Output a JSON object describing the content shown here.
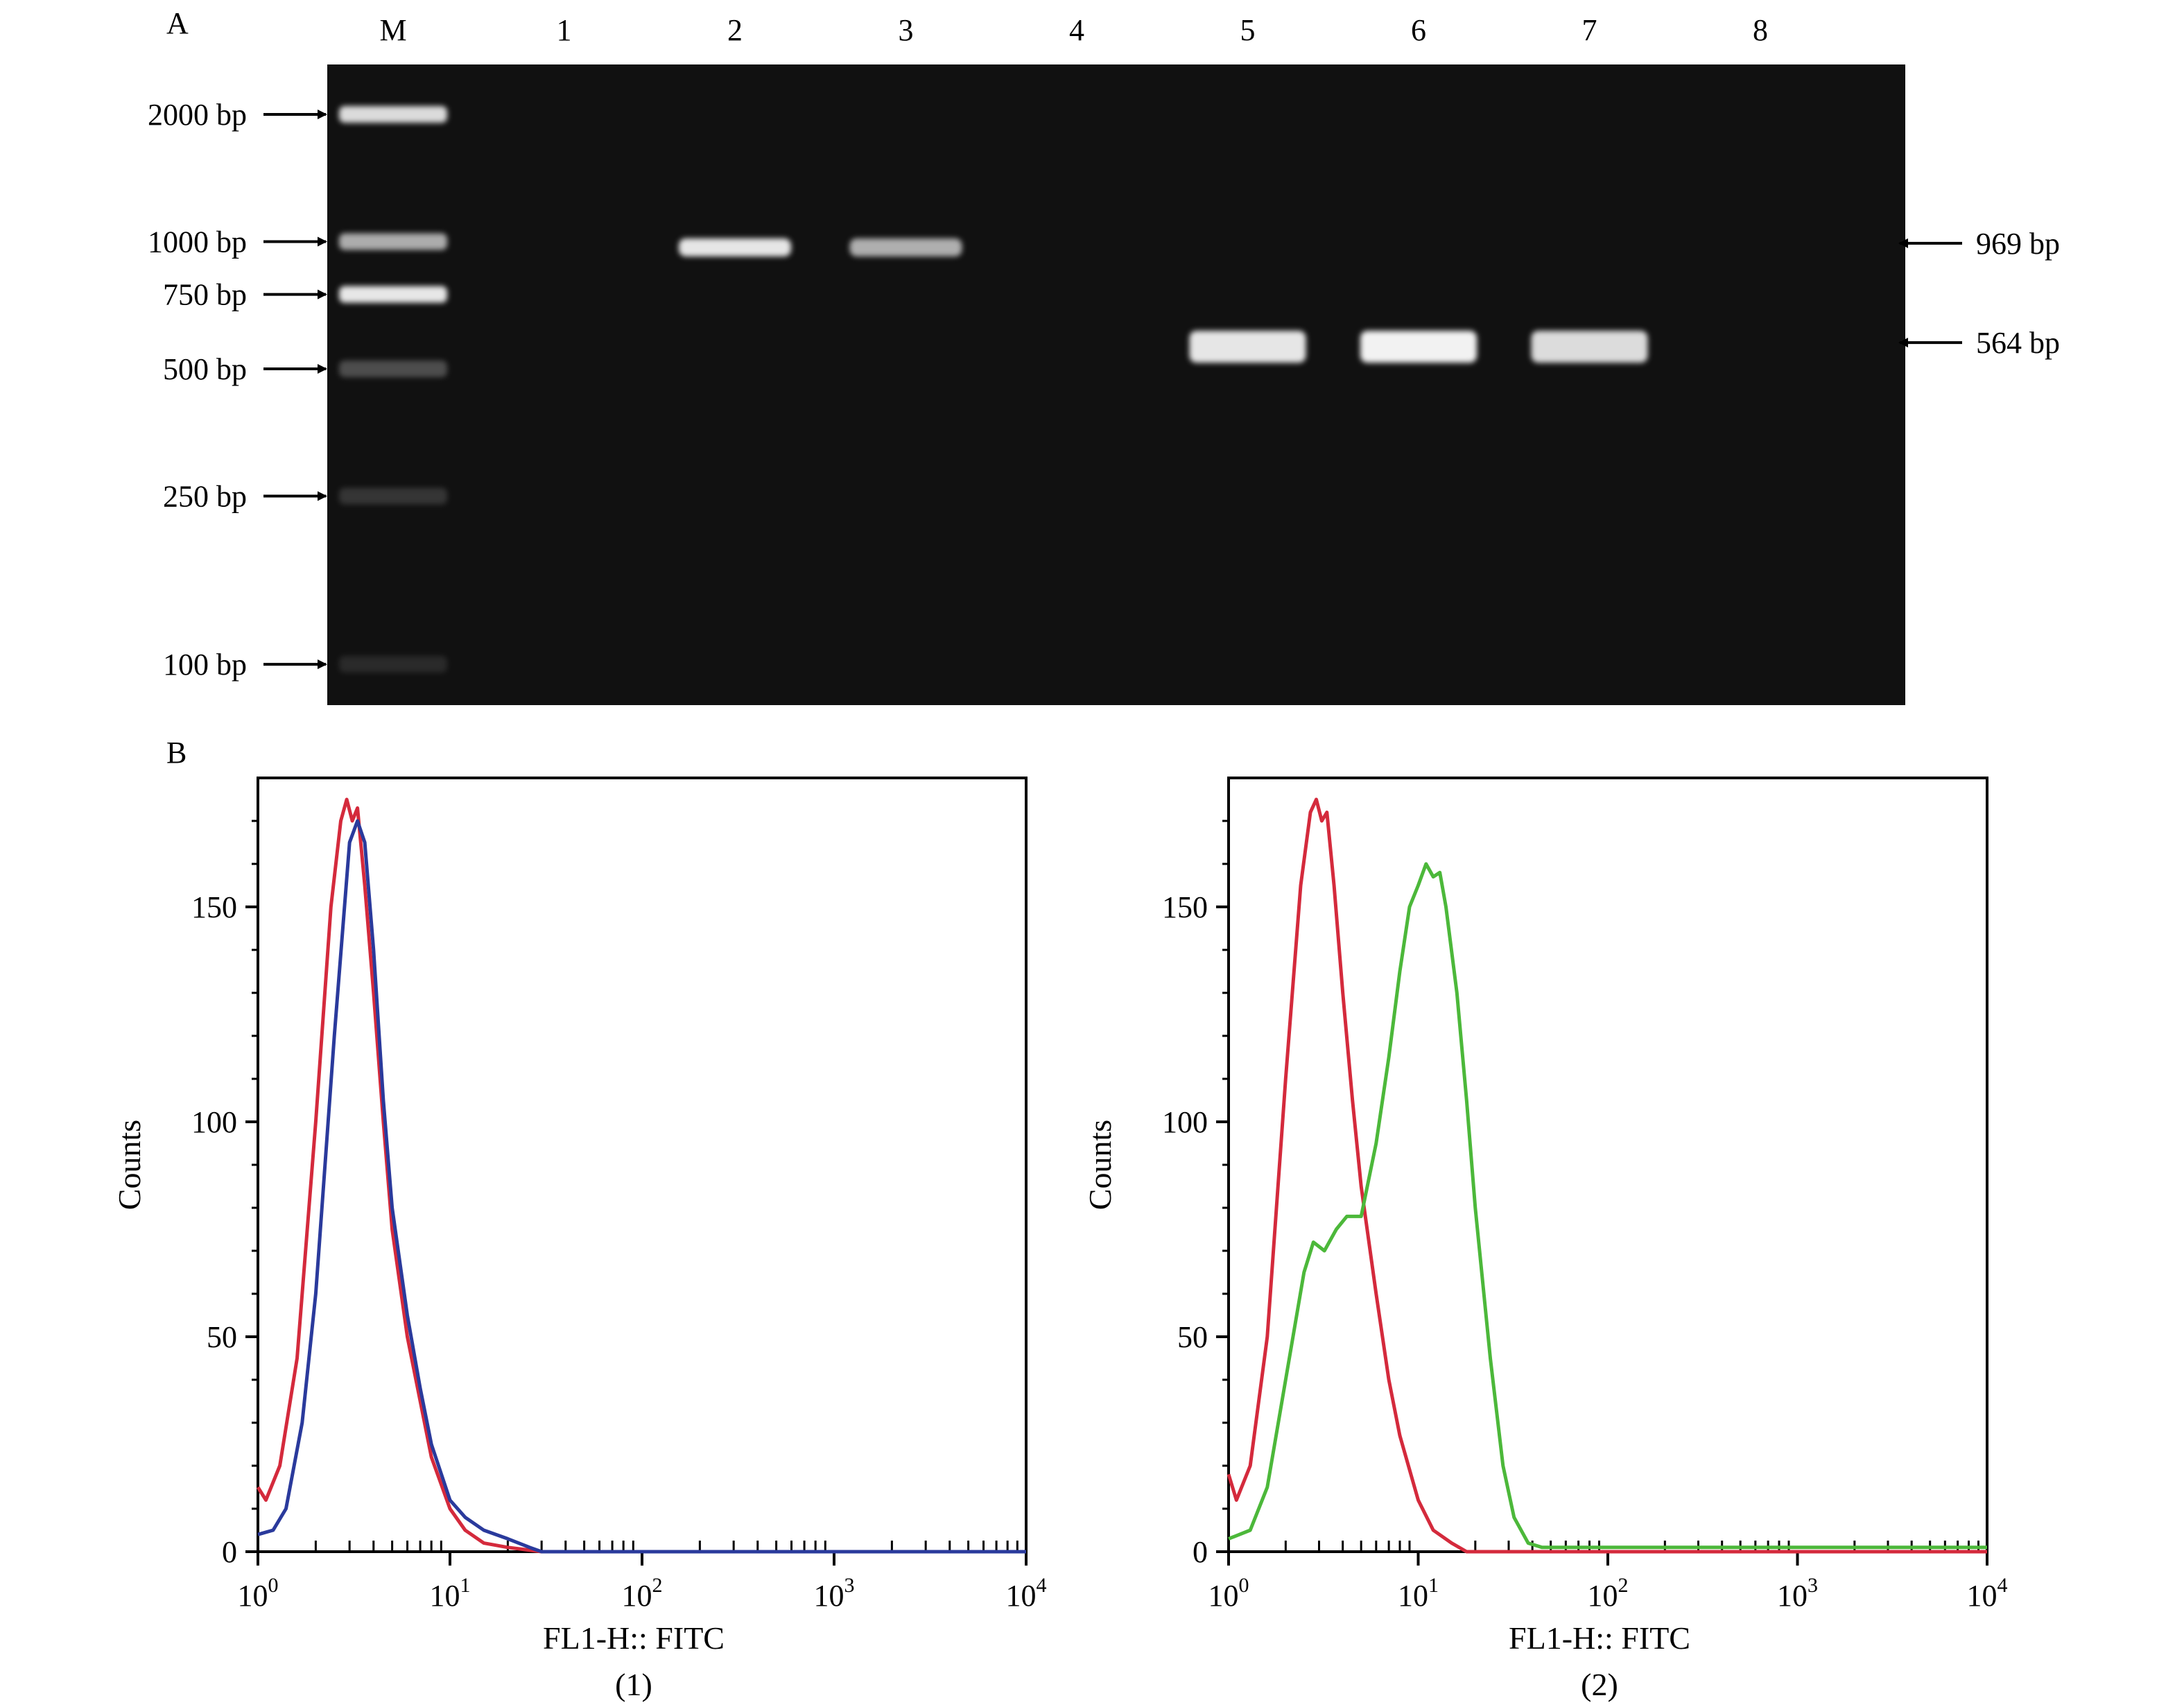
{
  "panel_a": {
    "label": "A",
    "lanes": [
      "M",
      "1",
      "2",
      "3",
      "4",
      "5",
      "6",
      "7",
      "8"
    ],
    "ladder": [
      {
        "label": "2000 bp",
        "bp": 2000,
        "intensity": 0.85
      },
      {
        "label": "1000 bp",
        "bp": 1000,
        "intensity": 0.65
      },
      {
        "label": "750 bp",
        "bp": 750,
        "intensity": 0.9
      },
      {
        "label": "500 bp",
        "bp": 500,
        "intensity": 0.25
      },
      {
        "label": "250 bp",
        "bp": 250,
        "intensity": 0.15
      },
      {
        "label": "100 bp",
        "bp": 100,
        "intensity": 0.1
      }
    ],
    "sample_bands": [
      {
        "lane": "2",
        "bp": 969,
        "intensity": 0.95
      },
      {
        "lane": "3",
        "bp": 969,
        "intensity": 0.7
      },
      {
        "lane": "5",
        "bp": 564,
        "intensity": 0.95
      },
      {
        "lane": "6",
        "bp": 564,
        "intensity": 1.0
      },
      {
        "lane": "7",
        "bp": 564,
        "intensity": 0.9
      }
    ],
    "band_markers": [
      {
        "label": "969 bp",
        "bp": 969
      },
      {
        "label": "564 bp",
        "bp": 564
      }
    ],
    "colors": {
      "gel": "#111111",
      "band": "#f2f2f2"
    }
  },
  "panel_b": {
    "label": "B"
  },
  "chart_data": [
    {
      "type": "line",
      "subplot_label": "(1)",
      "xlabel": "FL1-H:: FITC",
      "ylabel": "Counts",
      "xscale": "log",
      "xlim": [
        1,
        10000
      ],
      "ylim": [
        0,
        180
      ],
      "yticks": [
        0,
        50,
        100,
        150
      ],
      "xticks": [
        {
          "value": 1,
          "label": "10",
          "exp": "0"
        },
        {
          "value": 10,
          "label": "10",
          "exp": "1"
        },
        {
          "value": 100,
          "label": "10",
          "exp": "2"
        },
        {
          "value": 1000,
          "label": "10",
          "exp": "3"
        },
        {
          "value": 10000,
          "label": "10",
          "exp": "4"
        }
      ],
      "series": [
        {
          "color": "#d42a3c",
          "points": [
            [
              1.0,
              15
            ],
            [
              1.1,
              12
            ],
            [
              1.3,
              20
            ],
            [
              1.6,
              45
            ],
            [
              2.0,
              100
            ],
            [
              2.4,
              150
            ],
            [
              2.7,
              170
            ],
            [
              2.9,
              175
            ],
            [
              3.1,
              170
            ],
            [
              3.3,
              173
            ],
            [
              3.6,
              155
            ],
            [
              4.0,
              130
            ],
            [
              4.5,
              100
            ],
            [
              5.0,
              75
            ],
            [
              6.0,
              50
            ],
            [
              7.0,
              35
            ],
            [
              8.0,
              22
            ],
            [
              10.0,
              10
            ],
            [
              12.0,
              5
            ],
            [
              15.0,
              2
            ],
            [
              20.0,
              1
            ],
            [
              30.0,
              0
            ],
            [
              10000,
              0
            ]
          ]
        },
        {
          "color": "#2a3a9c",
          "points": [
            [
              1.0,
              4
            ],
            [
              1.2,
              5
            ],
            [
              1.4,
              10
            ],
            [
              1.7,
              30
            ],
            [
              2.0,
              60
            ],
            [
              2.5,
              120
            ],
            [
              3.0,
              165
            ],
            [
              3.3,
              170
            ],
            [
              3.6,
              165
            ],
            [
              4.0,
              140
            ],
            [
              4.5,
              105
            ],
            [
              5.0,
              80
            ],
            [
              6.0,
              55
            ],
            [
              7.0,
              38
            ],
            [
              8.0,
              25
            ],
            [
              10.0,
              12
            ],
            [
              12.0,
              8
            ],
            [
              15.0,
              5
            ],
            [
              20.0,
              3
            ],
            [
              26.0,
              1
            ],
            [
              30.0,
              0
            ],
            [
              10000,
              0
            ]
          ]
        }
      ]
    },
    {
      "type": "line",
      "subplot_label": "(2)",
      "xlabel": "FL1-H:: FITC",
      "ylabel": "Counts",
      "xscale": "log",
      "xlim": [
        1,
        10000
      ],
      "ylim": [
        0,
        180
      ],
      "yticks": [
        0,
        50,
        100,
        150
      ],
      "xticks": [
        {
          "value": 1,
          "label": "10",
          "exp": "0"
        },
        {
          "value": 10,
          "label": "10",
          "exp": "1"
        },
        {
          "value": 100,
          "label": "10",
          "exp": "2"
        },
        {
          "value": 1000,
          "label": "10",
          "exp": "3"
        },
        {
          "value": 10000,
          "label": "10",
          "exp": "4"
        }
      ],
      "series": [
        {
          "color": "#d42a3c",
          "points": [
            [
              1.0,
              18
            ],
            [
              1.1,
              12
            ],
            [
              1.3,
              20
            ],
            [
              1.6,
              50
            ],
            [
              2.0,
              110
            ],
            [
              2.4,
              155
            ],
            [
              2.7,
              172
            ],
            [
              2.9,
              175
            ],
            [
              3.1,
              170
            ],
            [
              3.3,
              172
            ],
            [
              3.6,
              155
            ],
            [
              4.0,
              130
            ],
            [
              4.5,
              105
            ],
            [
              5.0,
              85
            ],
            [
              6.0,
              60
            ],
            [
              7.0,
              40
            ],
            [
              8.0,
              27
            ],
            [
              10.0,
              12
            ],
            [
              12.0,
              5
            ],
            [
              15.0,
              2
            ],
            [
              18.0,
              0
            ],
            [
              10000,
              0
            ]
          ]
        },
        {
          "color": "#4cb83a",
          "points": [
            [
              1.0,
              3
            ],
            [
              1.3,
              5
            ],
            [
              1.6,
              15
            ],
            [
              2.0,
              40
            ],
            [
              2.5,
              65
            ],
            [
              2.8,
              72
            ],
            [
              3.2,
              70
            ],
            [
              3.7,
              75
            ],
            [
              4.2,
              78
            ],
            [
              5.0,
              78
            ],
            [
              6.0,
              95
            ],
            [
              7.0,
              115
            ],
            [
              8.0,
              135
            ],
            [
              9.0,
              150
            ],
            [
              10.0,
              155
            ],
            [
              11.0,
              160
            ],
            [
              12.0,
              157
            ],
            [
              13.0,
              158
            ],
            [
              14.0,
              150
            ],
            [
              16.0,
              130
            ],
            [
              18.0,
              105
            ],
            [
              20.0,
              80
            ],
            [
              24.0,
              45
            ],
            [
              28.0,
              20
            ],
            [
              32.0,
              8
            ],
            [
              38.0,
              2
            ],
            [
              45.0,
              1
            ],
            [
              10000,
              1
            ]
          ]
        }
      ]
    }
  ]
}
